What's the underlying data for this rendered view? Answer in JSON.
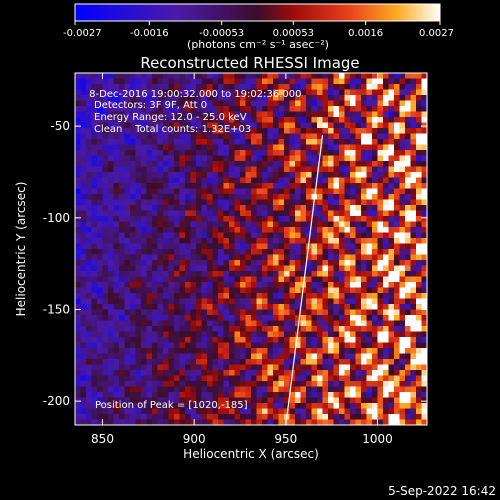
{
  "chart_data": {
    "type": "heatmap",
    "title": "Reconstructed RHESSI Image",
    "xlabel": "Heliocentric X (arcsec)",
    "ylabel": "Heliocentric Y (arcsec)",
    "xlim": [
      835,
      1027
    ],
    "ylim": [
      -213,
      -21
    ],
    "xticks": [
      850,
      900,
      950,
      1000
    ],
    "yticks": [
      -50,
      -100,
      -150,
      -200
    ],
    "colorbar": {
      "range": [
        -0.0027,
        0.0027
      ],
      "ticks": [
        "-0.0027",
        "-0.0016",
        "-0.00053",
        "0.00053",
        "0.0016",
        "0.0027"
      ],
      "unit_label": "(photons cm⁻² s⁻¹ asec⁻²)"
    },
    "annotations": [
      " 8-Dec-2016 19:00:32.000 to 19:02:36.000",
      "Detectors: 3F 9F, Att 0",
      "Energy Range: 12.0 - 25.0 keV",
      "Clean    Total counts: 1.32E+03"
    ],
    "peak_label": "Position of Peak = [1020,-185]",
    "limb_line": {
      "x": [
        950,
        970
      ],
      "y": [
        -213,
        -55
      ]
    },
    "grid": false
  },
  "footer": {
    "date": "5-Sep-2022 16:42"
  }
}
